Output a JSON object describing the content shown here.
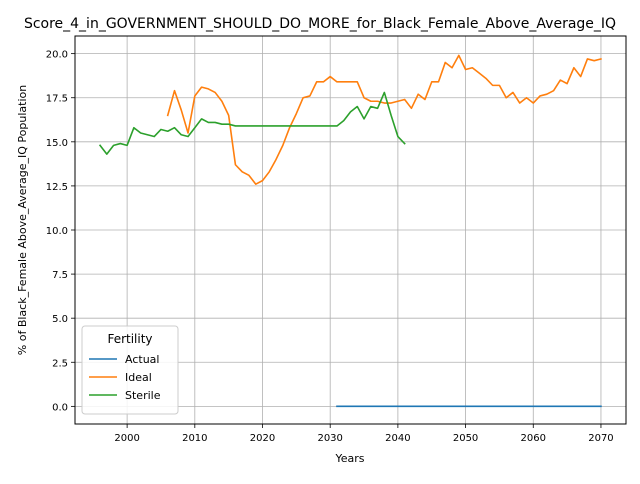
{
  "chart_data": {
    "type": "line",
    "title": "Score_4_in_GOVERNMENT_SHOULD_DO_MORE_for_Black_Female_Above_Average_IQ",
    "xlabel": "Years",
    "ylabel": "% of Black_Female Above_Average_IQ Population",
    "xlim": [
      1992.3,
      2073.7
    ],
    "ylim": [
      -1.0,
      21.0
    ],
    "xticks": [
      2000,
      2010,
      2020,
      2030,
      2040,
      2050,
      2060,
      2070
    ],
    "yticks": [
      0.0,
      2.5,
      5.0,
      7.5,
      10.0,
      12.5,
      15.0,
      17.5,
      20.0
    ],
    "grid": true,
    "legend": {
      "title": "Fertility",
      "placement": "lower-left"
    },
    "series": [
      {
        "name": "Actual",
        "color": "#1f77b4",
        "x": [
          2031,
          2040,
          2050,
          2060,
          2070
        ],
        "y": [
          0.0,
          0.0,
          0.0,
          0.0,
          0.0
        ]
      },
      {
        "name": "Ideal",
        "color": "#ff7f0e",
        "x": [
          2006,
          2007,
          2008,
          2009,
          2010,
          2011,
          2012,
          2013,
          2014,
          2015,
          2016,
          2017,
          2018,
          2019,
          2020,
          2021,
          2022,
          2023,
          2024,
          2025,
          2026,
          2027,
          2028,
          2029,
          2030,
          2031,
          2032,
          2033,
          2034,
          2035,
          2036,
          2037,
          2038,
          2039,
          2040,
          2041,
          2042,
          2043,
          2044,
          2045,
          2046,
          2047,
          2048,
          2049,
          2050,
          2051,
          2052,
          2053,
          2054,
          2055,
          2056,
          2057,
          2058,
          2059,
          2060,
          2061,
          2062,
          2063,
          2064,
          2065,
          2066,
          2067,
          2068,
          2069,
          2070
        ],
        "y": [
          16.5,
          17.9,
          16.8,
          15.5,
          17.6,
          18.1,
          18.0,
          17.8,
          17.3,
          16.5,
          13.7,
          13.3,
          13.1,
          12.6,
          12.8,
          13.3,
          14.0,
          14.8,
          15.8,
          16.6,
          17.5,
          17.6,
          18.4,
          18.4,
          18.7,
          18.4,
          18.4,
          18.4,
          18.4,
          17.5,
          17.3,
          17.3,
          17.2,
          17.2,
          17.3,
          17.4,
          16.9,
          17.7,
          17.4,
          18.4,
          18.4,
          19.5,
          19.2,
          19.9,
          19.1,
          19.2,
          18.9,
          18.6,
          18.2,
          18.2,
          17.5,
          17.8,
          17.2,
          17.5,
          17.2,
          17.6,
          17.7,
          17.9,
          18.5,
          18.3,
          19.2,
          18.7,
          19.7,
          19.6,
          19.7
        ]
      },
      {
        "name": "Sterile",
        "color": "#2ca02c",
        "x": [
          1996,
          1997,
          1998,
          1999,
          2000,
          2001,
          2002,
          2003,
          2004,
          2005,
          2006,
          2007,
          2008,
          2009,
          2010,
          2011,
          2012,
          2013,
          2014,
          2015,
          2016,
          2017,
          2018,
          2019,
          2020,
          2021,
          2022,
          2023,
          2024,
          2025,
          2026,
          2027,
          2028,
          2029,
          2030,
          2031,
          2032,
          2033,
          2034,
          2035,
          2036,
          2037,
          2038,
          2039,
          2040,
          2041
        ],
        "y": [
          14.8,
          14.3,
          14.8,
          14.9,
          14.8,
          15.8,
          15.5,
          15.4,
          15.3,
          15.7,
          15.6,
          15.8,
          15.4,
          15.3,
          15.8,
          16.3,
          16.1,
          16.1,
          16.0,
          16.0,
          15.9,
          15.9,
          15.9,
          15.9,
          15.9,
          15.9,
          15.9,
          15.9,
          15.9,
          15.9,
          15.9,
          15.9,
          15.9,
          15.9,
          15.9,
          15.9,
          16.2,
          16.7,
          17.0,
          16.3,
          17.0,
          16.9,
          17.8,
          16.5,
          15.3,
          14.9
        ]
      }
    ]
  }
}
